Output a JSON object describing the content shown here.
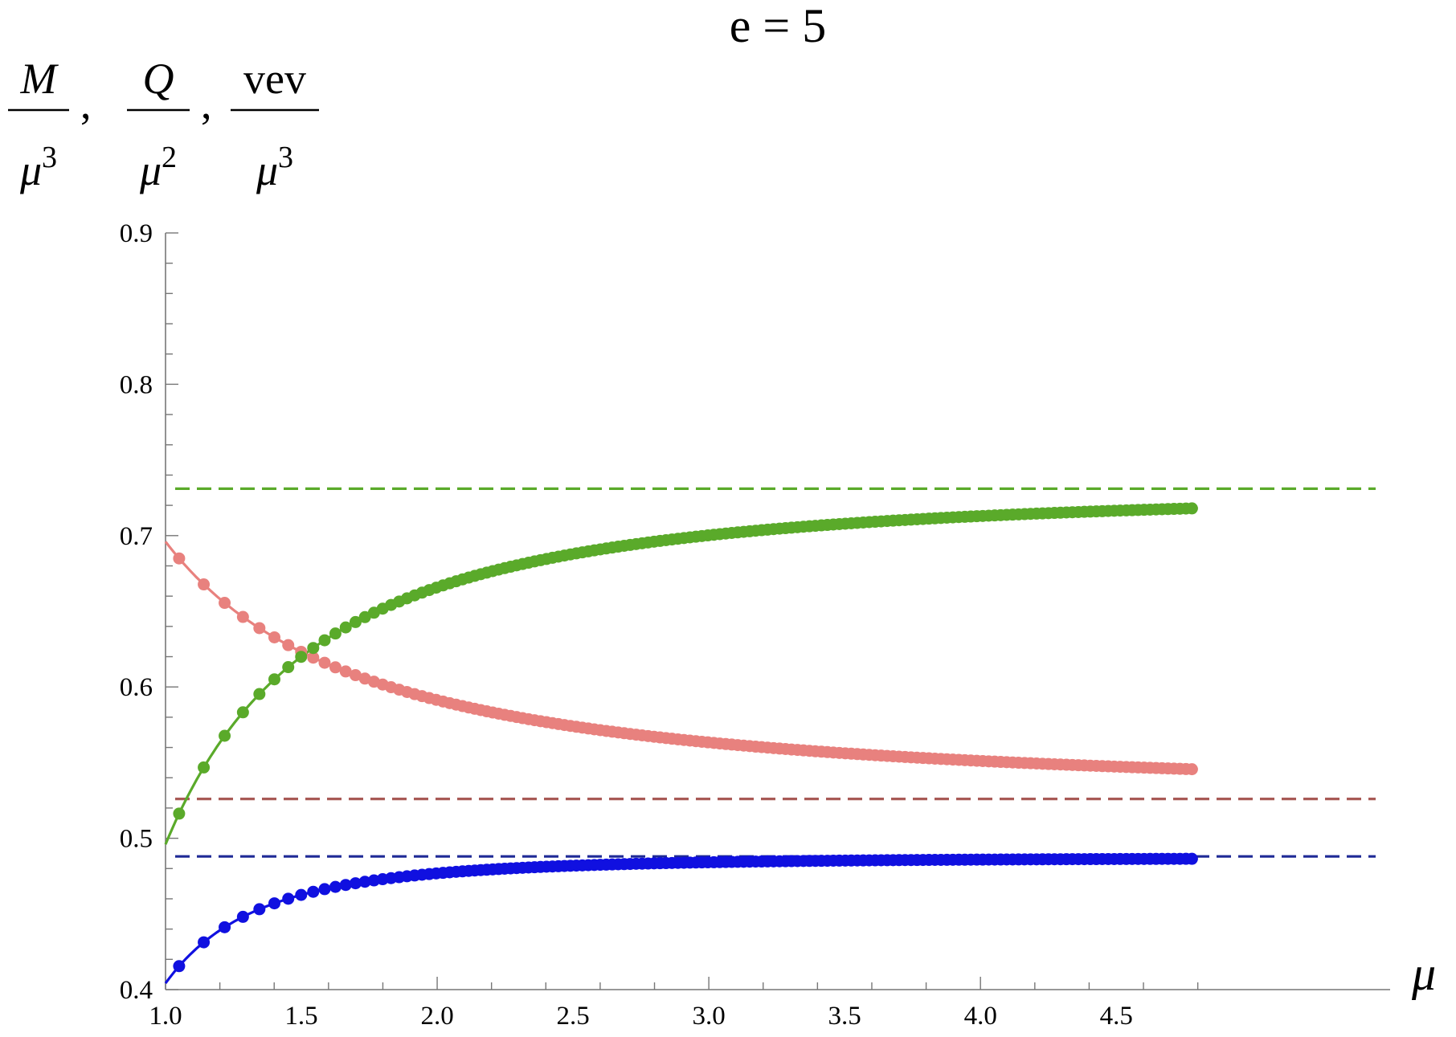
{
  "chart_data": {
    "type": "line",
    "title": "e = 5",
    "xlabel": "μ",
    "ylabel_terms": [
      {
        "num": "M",
        "num_italic": true,
        "den_base": "μ",
        "den_exp": "3"
      },
      {
        "num": "Q",
        "num_italic": true,
        "den_base": "μ",
        "den_exp": "2"
      },
      {
        "num": "vev",
        "num_italic": false,
        "den_base": "μ",
        "den_exp": "3"
      }
    ],
    "ylabel_sep": ",",
    "xlim": [
      1.0,
      4.85
    ],
    "ylim": [
      0.4,
      0.9
    ],
    "x_ticks": [
      "1.0",
      "1.5",
      "2.0",
      "2.5",
      "3.0",
      "3.5",
      "4.0",
      "4.5"
    ],
    "y_ticks": [
      "0.4",
      "0.5",
      "0.6",
      "0.7",
      "0.8",
      "0.9"
    ],
    "grid": false,
    "legend": "none",
    "series": [
      {
        "color": "#e8817e",
        "line_range": [
          1.0,
          4.8
        ],
        "marker_range": [
          1.05,
          4.8
        ],
        "formula": {
          "kind": "decay",
          "asymptote": 0.526,
          "amplitude": 0.17,
          "power": 1.38
        }
      },
      {
        "color": "#5aaa2a",
        "line_range": [
          1.0,
          4.8
        ],
        "marker_range": [
          1.05,
          4.8
        ],
        "formula": {
          "kind": "saturate",
          "asymptote": 0.731,
          "amplitude": 0.235,
          "power": 1.85
        }
      },
      {
        "color": "#1010e0",
        "line_range": [
          1.0,
          4.8
        ],
        "marker_range": [
          1.05,
          4.8
        ],
        "formula": {
          "kind": "saturate",
          "asymptote": 0.4872,
          "amplitude": 0.083,
          "power": 3.0
        }
      }
    ],
    "reference_lines": [
      {
        "y": 0.731,
        "color": "#5aaa2a",
        "style": "dashed"
      },
      {
        "y": 0.526,
        "color": "#a85a56",
        "style": "dashed"
      },
      {
        "y": 0.488,
        "color": "#1f2a96",
        "style": "dashed"
      }
    ]
  }
}
